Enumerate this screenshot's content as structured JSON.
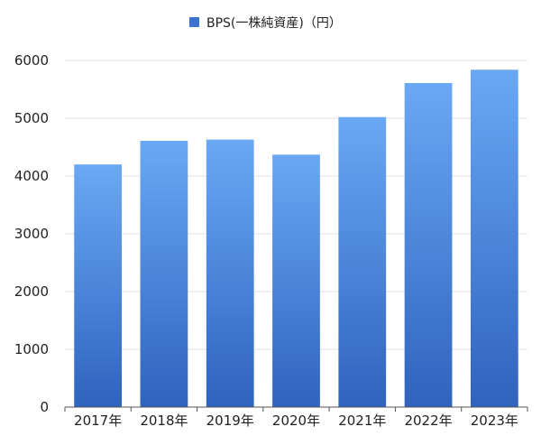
{
  "chart_data": {
    "type": "bar",
    "categories": [
      "2017年",
      "2018年",
      "2019年",
      "2020年",
      "2021年",
      "2022年",
      "2023年"
    ],
    "series": [
      {
        "name": "BPS(一株純資産)（円）",
        "values": [
          4200,
          4610,
          4630,
          4370,
          5020,
          5610,
          5840
        ]
      }
    ],
    "ylim": [
      0,
      6000
    ],
    "yticks": [
      0,
      1000,
      2000,
      3000,
      4000,
      5000,
      6000
    ],
    "grid": true,
    "legend": "top-center",
    "colors": {
      "bar_top": "#6aa8f4",
      "bar_bottom": "#2f63be",
      "legend_swatch": "#3b73cf",
      "grid": "#e2e2e2",
      "axis": "#555555"
    }
  }
}
